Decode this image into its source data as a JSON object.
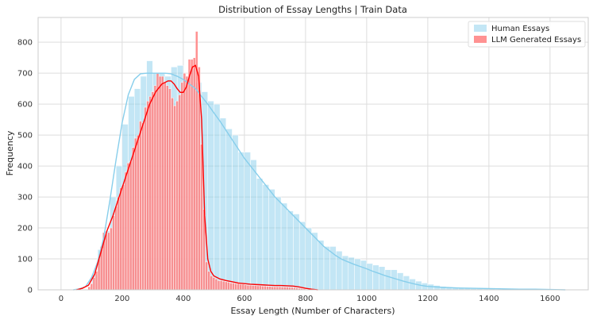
{
  "chart_data": {
    "type": "bar",
    "subtype": "histogram-with-kde",
    "title": "Distribution of Essay Lengths | Train Data",
    "xlabel": "Essay Length (Number of Characters)",
    "ylabel": "Frequency",
    "xlim": [
      -75,
      1725
    ],
    "ylim": [
      0,
      880
    ],
    "xticks": [
      0,
      200,
      400,
      600,
      800,
      1000,
      1200,
      1400,
      1600
    ],
    "yticks": [
      0,
      100,
      200,
      300,
      400,
      500,
      600,
      700,
      800
    ],
    "grid": true,
    "legend_position": "top-right",
    "series": [
      {
        "name": "Human Essays",
        "color": "#87ceeb",
        "bin_width": 20,
        "bins": [
          [
            100,
            50
          ],
          [
            120,
            130
          ],
          [
            140,
            190
          ],
          [
            160,
            300
          ],
          [
            180,
            400
          ],
          [
            200,
            535
          ],
          [
            220,
            625
          ],
          [
            240,
            650
          ],
          [
            260,
            690
          ],
          [
            280,
            740
          ],
          [
            300,
            700
          ],
          [
            320,
            700
          ],
          [
            340,
            690
          ],
          [
            360,
            720
          ],
          [
            380,
            725
          ],
          [
            400,
            690
          ],
          [
            420,
            715
          ],
          [
            440,
            670
          ],
          [
            460,
            640
          ],
          [
            480,
            610
          ],
          [
            500,
            600
          ],
          [
            520,
            555
          ],
          [
            540,
            520
          ],
          [
            560,
            500
          ],
          [
            580,
            445
          ],
          [
            600,
            445
          ],
          [
            620,
            420
          ],
          [
            640,
            360
          ],
          [
            660,
            340
          ],
          [
            680,
            325
          ],
          [
            700,
            300
          ],
          [
            720,
            280
          ],
          [
            740,
            255
          ],
          [
            760,
            245
          ],
          [
            780,
            220
          ],
          [
            800,
            200
          ],
          [
            820,
            185
          ],
          [
            840,
            160
          ],
          [
            860,
            140
          ],
          [
            880,
            140
          ],
          [
            900,
            125
          ],
          [
            920,
            110
          ],
          [
            940,
            105
          ],
          [
            960,
            100
          ],
          [
            980,
            95
          ],
          [
            1000,
            85
          ],
          [
            1020,
            80
          ],
          [
            1040,
            75
          ],
          [
            1060,
            65
          ],
          [
            1080,
            65
          ],
          [
            1100,
            55
          ],
          [
            1120,
            45
          ],
          [
            1140,
            35
          ],
          [
            1160,
            28
          ],
          [
            1180,
            22
          ],
          [
            1200,
            18
          ],
          [
            1220,
            14
          ],
          [
            1240,
            11
          ],
          [
            1260,
            9
          ],
          [
            1280,
            7
          ],
          [
            1300,
            6
          ],
          [
            1320,
            5
          ],
          [
            1340,
            4
          ],
          [
            1360,
            4
          ],
          [
            1380,
            3
          ],
          [
            1400,
            3
          ],
          [
            1420,
            2
          ],
          [
            1440,
            2
          ],
          [
            1460,
            2
          ],
          [
            1480,
            1
          ],
          [
            1500,
            1
          ],
          [
            1520,
            1
          ],
          [
            1540,
            1
          ],
          [
            1560,
            1
          ],
          [
            1580,
            1
          ],
          [
            1600,
            1
          ],
          [
            1620,
            1
          ]
        ],
        "kde": [
          [
            40,
            0
          ],
          [
            60,
            3
          ],
          [
            80,
            10
          ],
          [
            100,
            40
          ],
          [
            120,
            90
          ],
          [
            140,
            170
          ],
          [
            160,
            290
          ],
          [
            180,
            420
          ],
          [
            200,
            540
          ],
          [
            220,
            630
          ],
          [
            240,
            680
          ],
          [
            260,
            698
          ],
          [
            280,
            700
          ],
          [
            300,
            700
          ],
          [
            320,
            700
          ],
          [
            340,
            700
          ],
          [
            360,
            698
          ],
          [
            380,
            690
          ],
          [
            400,
            680
          ],
          [
            420,
            665
          ],
          [
            440,
            650
          ],
          [
            460,
            625
          ],
          [
            480,
            600
          ],
          [
            500,
            572
          ],
          [
            520,
            545
          ],
          [
            540,
            515
          ],
          [
            560,
            485
          ],
          [
            580,
            455
          ],
          [
            600,
            425
          ],
          [
            620,
            400
          ],
          [
            640,
            375
          ],
          [
            660,
            350
          ],
          [
            680,
            325
          ],
          [
            700,
            300
          ],
          [
            720,
            280
          ],
          [
            740,
            260
          ],
          [
            760,
            240
          ],
          [
            780,
            220
          ],
          [
            800,
            200
          ],
          [
            820,
            180
          ],
          [
            840,
            160
          ],
          [
            860,
            140
          ],
          [
            880,
            125
          ],
          [
            900,
            110
          ],
          [
            920,
            98
          ],
          [
            940,
            90
          ],
          [
            960,
            82
          ],
          [
            980,
            75
          ],
          [
            1000,
            68
          ],
          [
            1020,
            60
          ],
          [
            1040,
            53
          ],
          [
            1060,
            46
          ],
          [
            1080,
            40
          ],
          [
            1100,
            34
          ],
          [
            1120,
            28
          ],
          [
            1140,
            23
          ],
          [
            1160,
            18
          ],
          [
            1180,
            14
          ],
          [
            1200,
            11
          ],
          [
            1250,
            8
          ],
          [
            1300,
            6
          ],
          [
            1350,
            5
          ],
          [
            1400,
            4
          ],
          [
            1450,
            3
          ],
          [
            1500,
            2
          ],
          [
            1550,
            2
          ],
          [
            1600,
            1
          ],
          [
            1650,
            0
          ]
        ]
      },
      {
        "name": "LLM Generated Essays",
        "color": "#ff7f7f",
        "line_color": "#ff0000",
        "bin_width": 8,
        "bins": [
          [
            88,
            10
          ],
          [
            96,
            20
          ],
          [
            104,
            40
          ],
          [
            112,
            60
          ],
          [
            120,
            100
          ],
          [
            128,
            140
          ],
          [
            136,
            185
          ],
          [
            144,
            180
          ],
          [
            152,
            185
          ],
          [
            160,
            200
          ],
          [
            168,
            240
          ],
          [
            176,
            270
          ],
          [
            184,
            300
          ],
          [
            192,
            330
          ],
          [
            200,
            340
          ],
          [
            208,
            380
          ],
          [
            216,
            410
          ],
          [
            224,
            415
          ],
          [
            232,
            460
          ],
          [
            240,
            490
          ],
          [
            248,
            500
          ],
          [
            256,
            545
          ],
          [
            264,
            540
          ],
          [
            272,
            590
          ],
          [
            280,
            610
          ],
          [
            288,
            625
          ],
          [
            296,
            640
          ],
          [
            304,
            660
          ],
          [
            312,
            700
          ],
          [
            320,
            690
          ],
          [
            328,
            690
          ],
          [
            336,
            670
          ],
          [
            344,
            660
          ],
          [
            352,
            650
          ],
          [
            360,
            620
          ],
          [
            368,
            595
          ],
          [
            376,
            610
          ],
          [
            384,
            630
          ],
          [
            392,
            670
          ],
          [
            400,
            700
          ],
          [
            408,
            690
          ],
          [
            416,
            745
          ],
          [
            424,
            745
          ],
          [
            432,
            750
          ],
          [
            440,
            835
          ],
          [
            448,
            720
          ],
          [
            456,
            470
          ],
          [
            464,
            260
          ],
          [
            472,
            90
          ],
          [
            480,
            60
          ],
          [
            488,
            45
          ],
          [
            496,
            40
          ],
          [
            504,
            35
          ],
          [
            512,
            30
          ],
          [
            520,
            30
          ],
          [
            528,
            28
          ],
          [
            536,
            26
          ],
          [
            544,
            25
          ],
          [
            552,
            22
          ],
          [
            560,
            22
          ],
          [
            568,
            20
          ],
          [
            576,
            20
          ],
          [
            584,
            18
          ],
          [
            592,
            18
          ],
          [
            600,
            16
          ],
          [
            608,
            15
          ],
          [
            616,
            15
          ],
          [
            624,
            14
          ],
          [
            632,
            14
          ],
          [
            640,
            13
          ],
          [
            648,
            13
          ],
          [
            656,
            12
          ],
          [
            664,
            12
          ],
          [
            672,
            11
          ],
          [
            680,
            11
          ],
          [
            688,
            10
          ],
          [
            696,
            10
          ],
          [
            704,
            10
          ],
          [
            712,
            10
          ],
          [
            720,
            9
          ],
          [
            728,
            9
          ],
          [
            736,
            9
          ],
          [
            744,
            8
          ],
          [
            752,
            8
          ],
          [
            760,
            7
          ],
          [
            768,
            6
          ],
          [
            776,
            5
          ],
          [
            784,
            4
          ],
          [
            792,
            3
          ],
          [
            800,
            2
          ]
        ],
        "kde": [
          [
            50,
            0
          ],
          [
            70,
            5
          ],
          [
            90,
            15
          ],
          [
            110,
            50
          ],
          [
            130,
            120
          ],
          [
            150,
            190
          ],
          [
            170,
            240
          ],
          [
            190,
            300
          ],
          [
            210,
            360
          ],
          [
            230,
            420
          ],
          [
            250,
            480
          ],
          [
            270,
            540
          ],
          [
            290,
            600
          ],
          [
            310,
            640
          ],
          [
            330,
            665
          ],
          [
            350,
            675
          ],
          [
            360,
            675
          ],
          [
            370,
            665
          ],
          [
            380,
            650
          ],
          [
            390,
            638
          ],
          [
            400,
            638
          ],
          [
            410,
            655
          ],
          [
            420,
            690
          ],
          [
            430,
            720
          ],
          [
            440,
            725
          ],
          [
            450,
            690
          ],
          [
            460,
            550
          ],
          [
            470,
            240
          ],
          [
            480,
            100
          ],
          [
            490,
            60
          ],
          [
            500,
            45
          ],
          [
            520,
            35
          ],
          [
            540,
            30
          ],
          [
            560,
            26
          ],
          [
            580,
            22
          ],
          [
            600,
            20
          ],
          [
            620,
            18
          ],
          [
            640,
            17
          ],
          [
            660,
            16
          ],
          [
            680,
            15
          ],
          [
            700,
            14
          ],
          [
            720,
            14
          ],
          [
            740,
            13
          ],
          [
            760,
            12
          ],
          [
            780,
            9
          ],
          [
            800,
            5
          ],
          [
            820,
            2
          ],
          [
            840,
            0
          ]
        ]
      }
    ]
  }
}
